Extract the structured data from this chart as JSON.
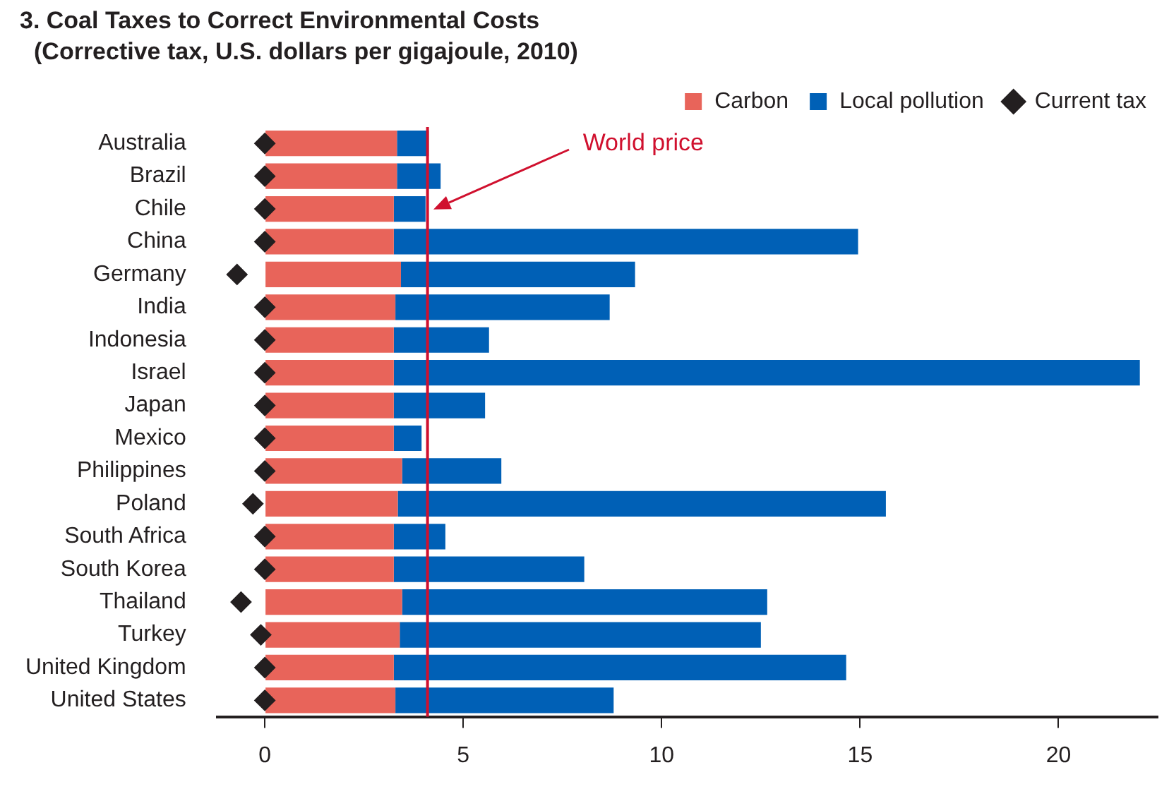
{
  "chart_data": {
    "type": "bar",
    "orientation": "horizontal",
    "stacked": true,
    "title": "3. Coal Taxes to Correct Environmental Costs",
    "subtitle": "(Corrective tax, U.S. dollars per gigajoule, 2010)",
    "categories": [
      "Australia",
      "Brazil",
      "Chile",
      "China",
      "Germany",
      "India",
      "Indonesia",
      "Israel",
      "Japan",
      "Mexico",
      "Philippines",
      "Poland",
      "South Africa",
      "South Korea",
      "Thailand",
      "Turkey",
      "United Kingdom",
      "United States"
    ],
    "series": [
      {
        "name": "Carbon",
        "color": "#e8645a",
        "values": [
          3.33,
          3.33,
          3.25,
          3.25,
          3.43,
          3.29,
          3.25,
          3.25,
          3.25,
          3.25,
          3.46,
          3.35,
          3.25,
          3.25,
          3.46,
          3.4,
          3.25,
          3.29
        ]
      },
      {
        "name": "Local pollution",
        "color": "#0060b6",
        "values": [
          0.8,
          1.1,
          0.8,
          11.7,
          5.9,
          5.4,
          2.4,
          18.8,
          2.3,
          0.7,
          2.5,
          12.3,
          1.3,
          4.8,
          9.2,
          9.1,
          11.4,
          5.5
        ]
      },
      {
        "name": "Current tax",
        "type": "scatter",
        "marker": "diamond",
        "color": "#231f20",
        "values": [
          0,
          0,
          0,
          0,
          -0.7,
          0,
          0,
          0,
          0,
          0,
          0,
          -0.3,
          0,
          0,
          -0.6,
          -0.1,
          0,
          0
        ]
      }
    ],
    "xlim": [
      -1.2,
      22.5
    ],
    "xticks": [
      0,
      5,
      10,
      15,
      20
    ],
    "grid": false,
    "legend": "top right",
    "ref_lines": [
      {
        "axis": "x",
        "value": 4.1,
        "label": "World price",
        "color": "#d0102e"
      }
    ]
  }
}
